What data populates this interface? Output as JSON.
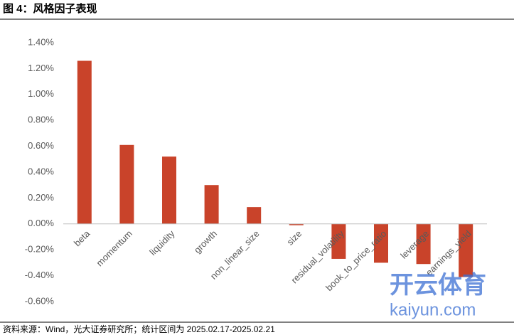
{
  "chart_data": {
    "type": "bar",
    "title": "图 4：风格因子表现",
    "source": "资料来源：Wind，光大证券研究所；统计区间为 2025.02.17-2025.02.21",
    "watermark": [
      "开云体育",
      "kaiyun.com"
    ],
    "categories": [
      "beta",
      "momentum",
      "liquidity",
      "growth",
      "non_linear_size",
      "size",
      "residual_volatility",
      "book_to_price_ratio",
      "leverage",
      "earnings_yield"
    ],
    "values": [
      1.26,
      0.61,
      0.52,
      0.3,
      0.13,
      -0.01,
      -0.27,
      -0.3,
      -0.31,
      -0.41
    ],
    "color": "#c9432a",
    "ylim": [
      -0.6,
      1.4
    ],
    "yticks": [
      {
        "value": -0.6,
        "label": "-0.60%"
      },
      {
        "value": -0.4,
        "label": "-0.40%"
      },
      {
        "value": -0.2,
        "label": "-0.20%"
      },
      {
        "value": 0,
        "label": "0.00%"
      },
      {
        "value": 0.2,
        "label": "0.20%"
      },
      {
        "value": 0.4,
        "label": "0.40%"
      },
      {
        "value": 0.6,
        "label": "0.60%"
      },
      {
        "value": 0.8,
        "label": "0.80%"
      },
      {
        "value": 1.0,
        "label": "1.00%"
      },
      {
        "value": 1.2,
        "label": "1.20%"
      },
      {
        "value": 1.4,
        "label": "1.40%"
      }
    ],
    "grid": false
  }
}
